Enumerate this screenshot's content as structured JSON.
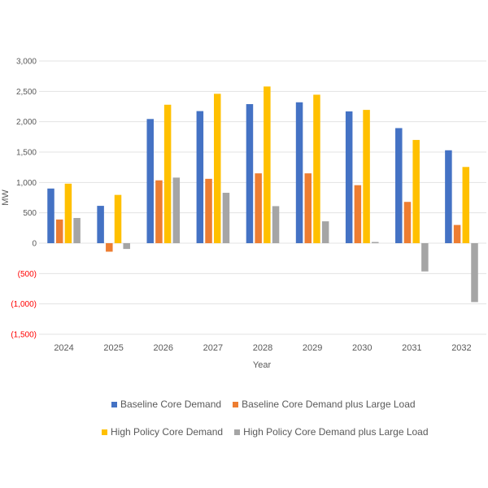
{
  "chart_data": {
    "type": "bar",
    "title": "",
    "xlabel": "Year",
    "ylabel": "MW",
    "ylim": [
      -1500,
      3000
    ],
    "yticks": [
      3000,
      2500,
      2000,
      1500,
      1000,
      500,
      0,
      -500,
      -1000,
      -1500
    ],
    "ytick_labels": [
      "3,000",
      "2,500",
      "2,000",
      "1,500",
      "1,000",
      "500",
      "0",
      "(500)",
      "(1,000)",
      "(1,500)"
    ],
    "negative_tick_color": "#ff0000",
    "grid": true,
    "legend_position": "bottom",
    "categories": [
      "2024",
      "2025",
      "2026",
      "2027",
      "2028",
      "2029",
      "2030",
      "2031",
      "2032"
    ],
    "series": [
      {
        "name": "Baseline Core Demand",
        "color": "#4472C4",
        "values": [
          900,
          615,
          2045,
          2175,
          2290,
          2320,
          2170,
          1895,
          1530
        ]
      },
      {
        "name": "Baseline Core Demand plus Large Load",
        "color": "#ED7D31",
        "values": [
          390,
          -140,
          1035,
          1060,
          1150,
          1150,
          955,
          680,
          300
        ]
      },
      {
        "name": "High Policy Core Demand",
        "color": "#FFC000",
        "values": [
          980,
          795,
          2280,
          2460,
          2580,
          2445,
          2195,
          1700,
          1255
        ]
      },
      {
        "name": "High Policy Core Demand plus Large Load",
        "color": "#A5A5A5",
        "values": [
          415,
          -95,
          1080,
          830,
          610,
          360,
          20,
          -465,
          -970
        ]
      }
    ]
  }
}
